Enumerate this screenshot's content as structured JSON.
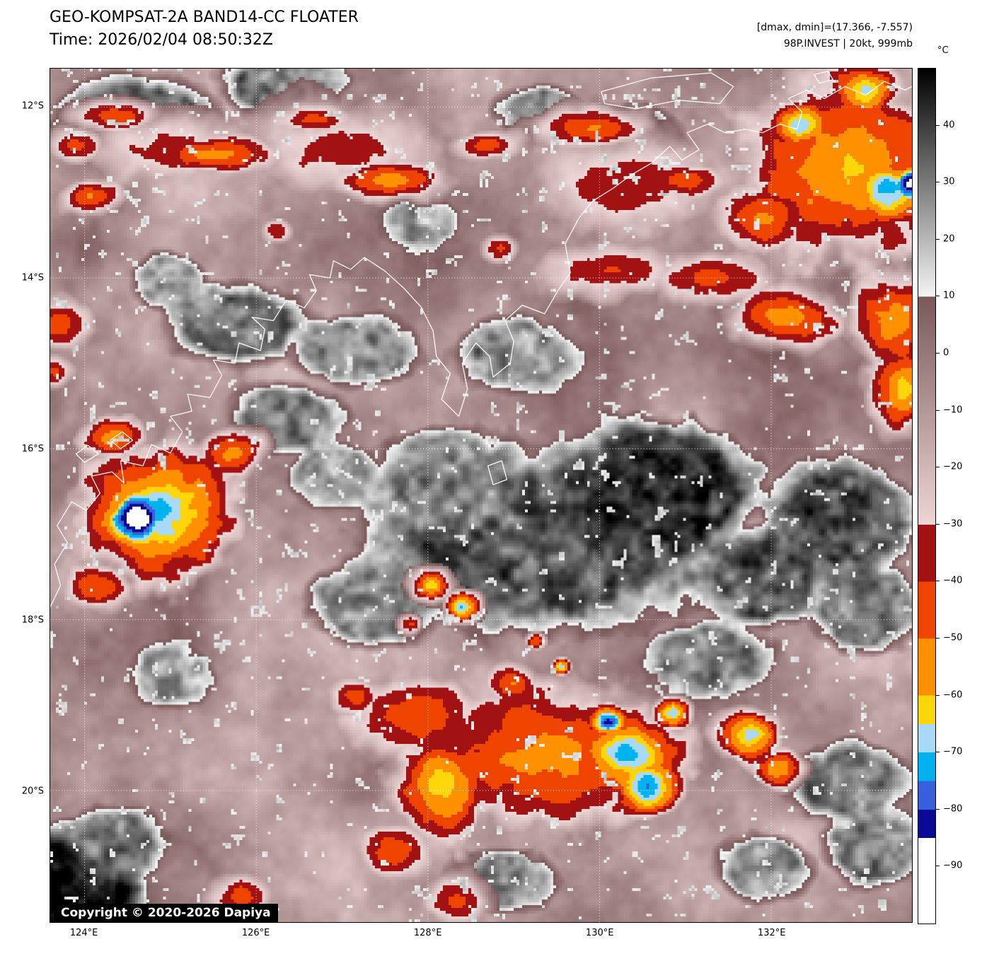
{
  "header": {
    "title": "GEO-KOMPSAT-2A BAND14-CC FLOATER",
    "time_line": "Time: 2026/02/04 08:50:32Z",
    "stats_line": "[dmax, dmin]=(17.366, -7.557)",
    "storm_line": "98P.INVEST | 20kt, 999mb"
  },
  "copyright": "Copyright © 2020-2026 Dapiya",
  "colorbar": {
    "unit": "°C",
    "domain": [
      50,
      -100
    ],
    "ticks": [
      {
        "value": 40,
        "label": "40"
      },
      {
        "value": 30,
        "label": "30"
      },
      {
        "value": 20,
        "label": "20"
      },
      {
        "value": 10,
        "label": "10"
      },
      {
        "value": 0,
        "label": "0"
      },
      {
        "value": -10,
        "label": "−10"
      },
      {
        "value": -20,
        "label": "−20"
      },
      {
        "value": -30,
        "label": "−30"
      },
      {
        "value": -40,
        "label": "−40"
      },
      {
        "value": -50,
        "label": "−50"
      },
      {
        "value": -60,
        "label": "−60"
      },
      {
        "value": -70,
        "label": "−70"
      },
      {
        "value": -80,
        "label": "−80"
      },
      {
        "value": -90,
        "label": "−90"
      }
    ],
    "segments": [
      [
        50,
        10,
        "#000000",
        "#f5f5f5"
      ],
      [
        10,
        -30,
        "#7a5858",
        "#eed6d6"
      ],
      [
        -30,
        -40,
        "#a31212",
        "#a31212"
      ],
      [
        -40,
        -50,
        "#ee4400",
        "#ee4400"
      ],
      [
        -50,
        -60,
        "#ff9100",
        "#ff9100"
      ],
      [
        -60,
        -65,
        "#ffd60a",
        "#ffd60a"
      ],
      [
        -65,
        -70,
        "#a8d9f6",
        "#a8d9f6"
      ],
      [
        -70,
        -75,
        "#00b3ee",
        "#00b3ee"
      ],
      [
        -75,
        -80,
        "#3a5fdc",
        "#3a5fdc"
      ],
      [
        -80,
        -85,
        "#0a0a96",
        "#0a0a96"
      ],
      [
        -85,
        -100,
        "#ffffff",
        "#ffffff"
      ]
    ]
  },
  "axes": {
    "lon_domain": [
      123.6,
      133.64
    ],
    "lat_domain": [
      11.55,
      21.54
    ],
    "lat_ticks": [
      {
        "value": 12,
        "label": "12°S"
      },
      {
        "value": 14,
        "label": "14°S"
      },
      {
        "value": 16,
        "label": "16°S"
      },
      {
        "value": 18,
        "label": "18°S"
      },
      {
        "value": 20,
        "label": "20°S"
      }
    ],
    "lon_ticks": [
      {
        "value": 124,
        "label": "124°E"
      },
      {
        "value": 126,
        "label": "126°E"
      },
      {
        "value": 128,
        "label": "128°E"
      },
      {
        "value": 130,
        "label": "130°E"
      },
      {
        "value": 132,
        "label": "132°E"
      }
    ]
  },
  "map": {
    "background": {
      "base_temp": -7,
      "variation": 44
    },
    "warm_features": [
      [
        129.3,
        17.1,
        2.3,
        1.25,
        36
      ],
      [
        130.7,
        16.5,
        1.3,
        0.95,
        42
      ],
      [
        128.2,
        16.35,
        0.95,
        0.7,
        30
      ],
      [
        127.4,
        17.8,
        0.9,
        0.6,
        28
      ],
      [
        131.9,
        17.5,
        0.85,
        0.7,
        34
      ],
      [
        132.8,
        16.8,
        0.95,
        0.8,
        38
      ],
      [
        133.1,
        17.9,
        0.75,
        0.6,
        33
      ],
      [
        131.3,
        18.45,
        0.85,
        0.5,
        30
      ],
      [
        132.9,
        19.9,
        0.8,
        0.55,
        30
      ],
      [
        133.2,
        20.7,
        0.7,
        0.5,
        29
      ],
      [
        131.9,
        20.9,
        0.65,
        0.45,
        26
      ],
      [
        124.6,
        12.15,
        1.15,
        0.6,
        34
      ],
      [
        126.3,
        11.75,
        0.85,
        0.45,
        30
      ],
      [
        125.8,
        14.55,
        1.0,
        0.55,
        30
      ],
      [
        127.15,
        14.85,
        0.85,
        0.5,
        27
      ],
      [
        126.35,
        15.65,
        0.75,
        0.5,
        29
      ],
      [
        125.0,
        14.05,
        0.5,
        0.4,
        25
      ],
      [
        125.0,
        18.65,
        0.55,
        0.4,
        24
      ],
      [
        128.9,
        21.05,
        0.75,
        0.45,
        24
      ],
      [
        126.9,
        16.3,
        0.6,
        0.45,
        24
      ],
      [
        123.8,
        21.2,
        1.0,
        0.85,
        50
      ],
      [
        124.4,
        20.6,
        0.6,
        0.5,
        30
      ],
      [
        130.3,
        12.4,
        0.8,
        0.5,
        30
      ],
      [
        129.3,
        12.05,
        0.6,
        0.35,
        26
      ],
      [
        127.9,
        13.35,
        0.5,
        0.35,
        24
      ],
      [
        129.0,
        14.9,
        0.8,
        0.5,
        26
      ]
    ],
    "cold_features": [
      [
        124.85,
        16.75,
        1.25,
        1.05,
        -72
      ],
      [
        124.62,
        16.82,
        0.62,
        0.52,
        -92
      ],
      [
        125.72,
        16.05,
        0.5,
        0.38,
        -55
      ],
      [
        124.32,
        15.88,
        0.48,
        0.34,
        -58
      ],
      [
        124.15,
        17.62,
        0.52,
        0.4,
        -50
      ],
      [
        129.4,
        19.6,
        2.1,
        1.25,
        -55
      ],
      [
        127.9,
        19.15,
        1.15,
        0.75,
        -48
      ],
      [
        128.15,
        19.95,
        0.8,
        0.85,
        -64
      ],
      [
        130.3,
        19.55,
        0.95,
        0.72,
        -72
      ],
      [
        130.55,
        19.95,
        0.6,
        0.5,
        -76
      ],
      [
        130.1,
        19.2,
        0.38,
        0.3,
        -83
      ],
      [
        130.85,
        19.1,
        0.35,
        0.28,
        -70
      ],
      [
        131.75,
        19.35,
        0.55,
        0.42,
        -68
      ],
      [
        132.1,
        19.75,
        0.4,
        0.3,
        -58
      ],
      [
        129.0,
        18.75,
        0.45,
        0.35,
        -50
      ],
      [
        127.15,
        18.9,
        0.4,
        0.3,
        -44
      ],
      [
        127.6,
        20.7,
        0.6,
        0.45,
        -46
      ],
      [
        128.35,
        21.3,
        0.5,
        0.4,
        -44
      ],
      [
        132.9,
        12.7,
        1.8,
        1.5,
        -60
      ],
      [
        133.35,
        12.95,
        0.75,
        0.6,
        -74
      ],
      [
        132.35,
        12.2,
        0.55,
        0.45,
        -70
      ],
      [
        133.62,
        12.9,
        0.4,
        0.35,
        -88
      ],
      [
        133.1,
        11.8,
        0.6,
        0.45,
        -66
      ],
      [
        131.9,
        13.3,
        0.8,
        0.5,
        -52
      ],
      [
        133.45,
        14.5,
        0.7,
        0.85,
        -56
      ],
      [
        133.55,
        15.3,
        0.55,
        0.75,
        -62
      ],
      [
        132.2,
        14.45,
        0.85,
        0.5,
        -56
      ],
      [
        131.3,
        14.0,
        0.9,
        0.45,
        -46
      ],
      [
        125.5,
        12.55,
        1.05,
        0.3,
        -54
      ],
      [
        127.55,
        12.85,
        0.95,
        0.32,
        -56
      ],
      [
        124.35,
        12.1,
        0.75,
        0.26,
        -48
      ],
      [
        126.7,
        12.15,
        0.65,
        0.24,
        -44
      ],
      [
        128.7,
        12.45,
        0.55,
        0.26,
        -46
      ],
      [
        129.9,
        12.25,
        0.85,
        0.33,
        -50
      ],
      [
        131.0,
        12.85,
        0.75,
        0.3,
        -46
      ],
      [
        123.9,
        12.45,
        0.45,
        0.3,
        -44
      ],
      [
        124.05,
        13.05,
        0.5,
        0.28,
        -50
      ],
      [
        126.25,
        13.45,
        0.25,
        0.2,
        -40
      ],
      [
        128.85,
        13.65,
        0.3,
        0.22,
        -42
      ],
      [
        127.0,
        12.5,
        1.6,
        0.7,
        -36
      ],
      [
        125.0,
        12.5,
        1.3,
        0.6,
        -36
      ],
      [
        130.3,
        12.9,
        1.6,
        0.8,
        -38
      ],
      [
        130.2,
        13.9,
        1.3,
        0.45,
        -40
      ],
      [
        123.7,
        14.55,
        0.5,
        0.45,
        -48
      ],
      [
        123.65,
        15.1,
        0.35,
        0.3,
        -40
      ],
      [
        128.05,
        17.6,
        0.34,
        0.3,
        -64
      ],
      [
        128.4,
        17.85,
        0.3,
        0.26,
        -72
      ],
      [
        127.8,
        18.05,
        0.18,
        0.15,
        -44
      ],
      [
        129.25,
        18.25,
        0.16,
        0.14,
        -52
      ],
      [
        129.55,
        18.55,
        0.16,
        0.14,
        -70
      ],
      [
        125.85,
        21.25,
        0.55,
        0.38,
        -46
      ]
    ],
    "coastlines": [
      [
        [
          123.6,
          17.85
        ],
        [
          123.72,
          17.6
        ],
        [
          123.65,
          17.35
        ],
        [
          123.8,
          17.1
        ],
        [
          123.68,
          16.9
        ],
        [
          123.85,
          16.62
        ],
        [
          124.02,
          16.72
        ],
        [
          124.18,
          16.52
        ],
        [
          124.08,
          16.32
        ],
        [
          124.32,
          16.27
        ],
        [
          124.46,
          16.4
        ],
        [
          124.42,
          16.14
        ],
        [
          124.68,
          16.2
        ],
        [
          124.78,
          15.95
        ],
        [
          125.0,
          16.05
        ],
        [
          125.14,
          15.8
        ],
        [
          125.0,
          15.62
        ],
        [
          125.25,
          15.56
        ],
        [
          125.2,
          15.36
        ],
        [
          125.46,
          15.4
        ],
        [
          125.6,
          15.14
        ],
        [
          125.5,
          14.96
        ],
        [
          125.75,
          15.0
        ],
        [
          125.8,
          14.76
        ],
        [
          126.05,
          14.85
        ],
        [
          126.1,
          14.6
        ],
        [
          125.95,
          14.46
        ],
        [
          126.2,
          14.5
        ],
        [
          126.35,
          14.26
        ],
        [
          126.56,
          14.35
        ],
        [
          126.7,
          14.15
        ],
        [
          126.62,
          13.96
        ],
        [
          126.86,
          14.0
        ],
        [
          126.9,
          13.8
        ],
        [
          127.1,
          13.9
        ],
        [
          127.26,
          13.76
        ],
        [
          127.5,
          13.92
        ],
        [
          127.72,
          14.12
        ],
        [
          127.92,
          14.34
        ],
        [
          128.06,
          14.62
        ],
        [
          128.1,
          14.92
        ],
        [
          128.26,
          15.12
        ],
        [
          128.16,
          15.42
        ],
        [
          128.36,
          15.62
        ],
        [
          128.46,
          15.3
        ],
        [
          128.4,
          15.0
        ],
        [
          128.56,
          14.76
        ],
        [
          128.72,
          14.92
        ],
        [
          128.76,
          15.16
        ],
        [
          128.96,
          15.0
        ],
        [
          129.0,
          14.74
        ],
        [
          128.9,
          14.5
        ],
        [
          129.1,
          14.32
        ],
        [
          129.36,
          14.42
        ],
        [
          129.52,
          14.14
        ],
        [
          129.66,
          13.94
        ],
        [
          129.6,
          13.6
        ],
        [
          129.76,
          13.3
        ],
        [
          129.92,
          13.1
        ],
        [
          130.16,
          12.95
        ],
        [
          130.36,
          12.8
        ],
        [
          130.6,
          12.66
        ],
        [
          130.82,
          12.46
        ],
        [
          130.96,
          12.62
        ],
        [
          131.16,
          12.5
        ],
        [
          131.02,
          12.3
        ],
        [
          131.26,
          12.2
        ],
        [
          131.46,
          12.3
        ],
        [
          131.7,
          12.26
        ],
        [
          131.9,
          12.3
        ],
        [
          132.1,
          12.2
        ],
        [
          132.3,
          12.26
        ],
        [
          132.36,
          12.06
        ],
        [
          132.2,
          11.9
        ],
        [
          132.42,
          11.8
        ],
        [
          132.62,
          11.9
        ],
        [
          132.86,
          11.76
        ],
        [
          133.1,
          11.86
        ],
        [
          133.32,
          11.7
        ],
        [
          133.56,
          11.8
        ],
        [
          133.64,
          11.76
        ]
      ],
      [
        [
          130.02,
          11.82
        ],
        [
          130.6,
          11.66
        ],
        [
          131.3,
          11.6
        ],
        [
          131.56,
          11.76
        ],
        [
          131.4,
          11.96
        ],
        [
          130.92,
          11.92
        ],
        [
          130.42,
          12.02
        ],
        [
          130.06,
          11.96
        ],
        [
          130.02,
          11.82
        ]
      ],
      [
        [
          123.9,
          16.06
        ],
        [
          124.04,
          15.96
        ],
        [
          124.16,
          16.06
        ],
        [
          124.0,
          16.16
        ],
        [
          123.9,
          16.06
        ]
      ],
      [
        [
          124.3,
          15.9
        ],
        [
          124.44,
          15.8
        ],
        [
          124.56,
          15.9
        ],
        [
          124.42,
          16.0
        ],
        [
          124.3,
          15.9
        ]
      ],
      [
        [
          128.7,
          16.2
        ],
        [
          128.86,
          16.14
        ],
        [
          128.92,
          16.36
        ],
        [
          128.76,
          16.42
        ],
        [
          128.7,
          16.2
        ]
      ],
      [
        [
          132.5,
          11.62
        ],
        [
          132.66,
          11.58
        ],
        [
          132.72,
          11.68
        ],
        [
          132.56,
          11.72
        ],
        [
          132.5,
          11.62
        ]
      ]
    ]
  }
}
